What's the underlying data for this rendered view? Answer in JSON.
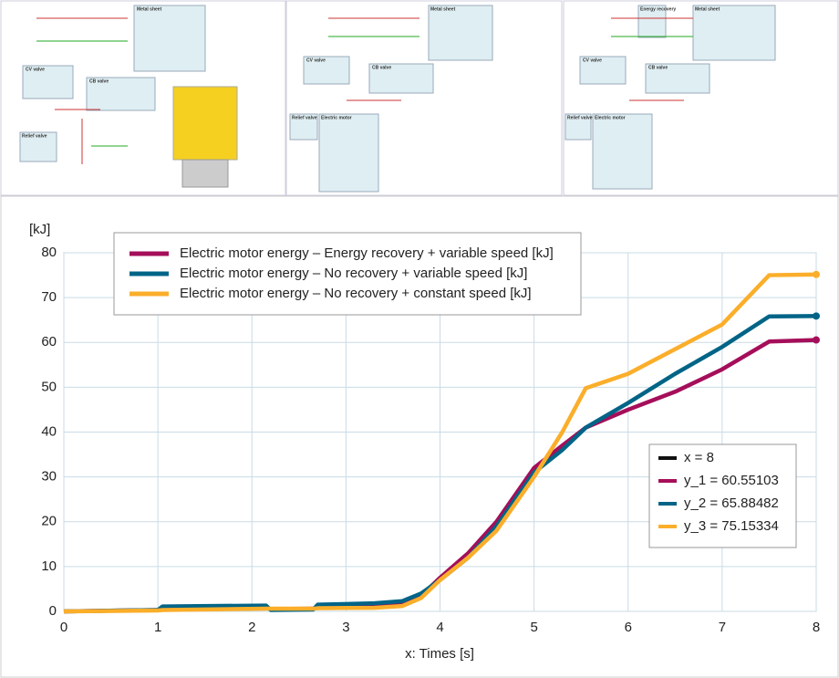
{
  "schematics": {
    "labels": [
      "Metal sheet",
      "CV valve",
      "CB valve",
      "Relief valve",
      "Metal sheet",
      "CV valve",
      "CB valve",
      "Relief valve",
      "Electric motor",
      "Energy recovery",
      "Metal sheet",
      "CV valve",
      "CB valve",
      "Relief valve",
      "Electric motor"
    ]
  },
  "chart_data": {
    "type": "line",
    "ylabel": "[kJ]",
    "xlabel": "x: Times [s]",
    "x": [
      0,
      1,
      1.05,
      2.15,
      2.2,
      2.65,
      2.7,
      3.3,
      3.6,
      3.8,
      4,
      4.3,
      4.6,
      5,
      5.3,
      5.55,
      6,
      6.5,
      7,
      7.5,
      8
    ],
    "series": [
      {
        "name": "Electric motor energy – Energy recovery + variable speed [kJ]",
        "color": "#a50e5a",
        "values": [
          0,
          0.3,
          0.5,
          0.8,
          0.5,
          0.6,
          0.8,
          1,
          1.5,
          3.5,
          7.5,
          13,
          20,
          32,
          37,
          41,
          45,
          49,
          54,
          60.2,
          60.55103
        ]
      },
      {
        "name": "Electric motor energy – No recovery + variable speed [kJ]",
        "color": "#006487",
        "values": [
          0,
          0.3,
          1.1,
          1.3,
          0.3,
          0.4,
          1.5,
          1.8,
          2.3,
          4,
          7,
          12,
          19,
          31,
          36,
          41,
          46.5,
          53,
          59,
          65.8,
          65.88482
        ]
      },
      {
        "name": "Electric motor energy – No recovery + constant speed [kJ]",
        "color": "#fbae2a",
        "values": [
          0,
          0.2,
          0.3,
          0.6,
          0.6,
          0.6,
          0.7,
          0.8,
          1.2,
          3,
          7,
          12,
          18,
          30,
          40,
          49.8,
          53,
          58.5,
          64,
          75,
          75.15334
        ]
      }
    ],
    "cursor_labels": [
      "x = 8",
      "y_1 = 60.55103",
      "y_2 = 65.88482",
      "y_3 = 75.15334"
    ],
    "xlim": [
      0,
      8
    ],
    "xticks": [
      0,
      1,
      2,
      3,
      4,
      5,
      6,
      7,
      8
    ],
    "ylim": [
      0,
      80
    ],
    "yticks": [
      0,
      10,
      20,
      30,
      40,
      50,
      60,
      70,
      80
    ],
    "grid": true
  }
}
